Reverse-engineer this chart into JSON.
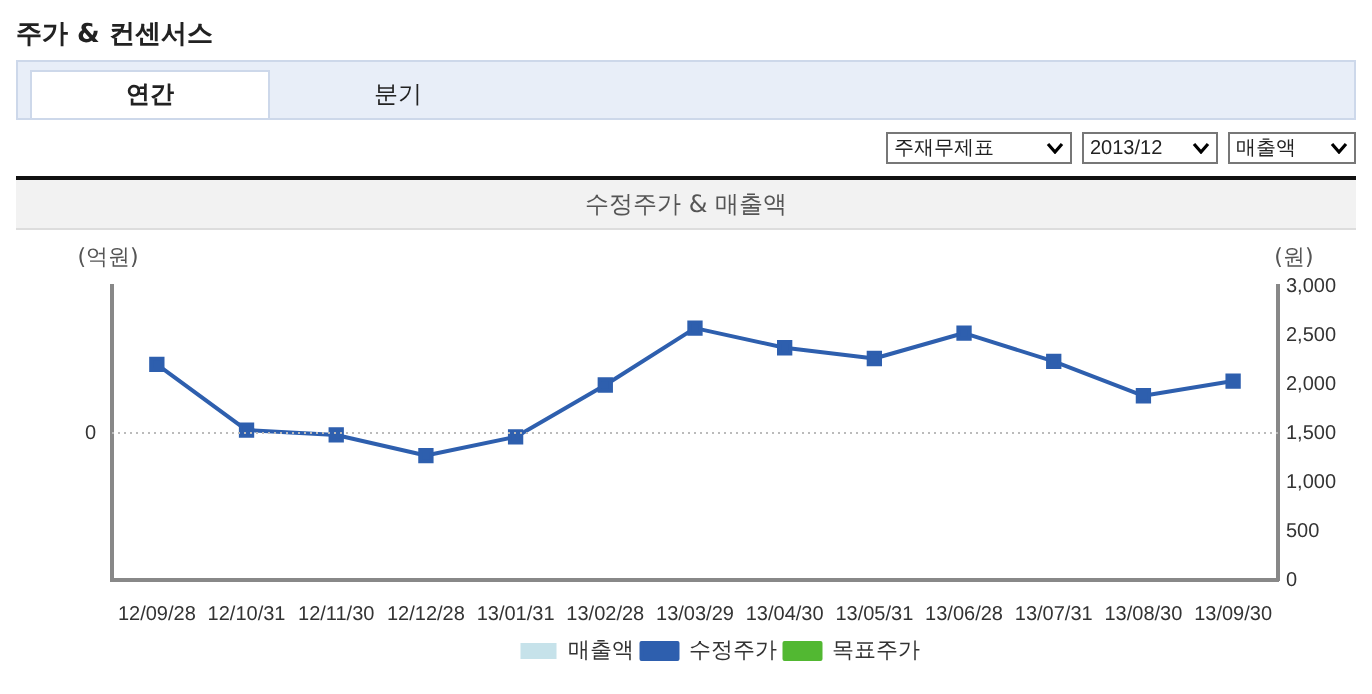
{
  "chart_data": {
    "type": "line",
    "title": "주가 & 컨센서스",
    "subtitle": "수정주가 & 매출액",
    "annotations": [
      "연간",
      "분기",
      "주재무제표",
      "2013/12",
      "매출액",
      "0"
    ],
    "ylabel": "(억원)",
    "y2label": "(원)",
    "categories": [
      "12/09/28",
      "12/10/31",
      "12/11/30",
      "12/12/28",
      "13/01/31",
      "13/02/28",
      "13/03/29",
      "13/04/30",
      "13/05/31",
      "13/06/28",
      "13/07/31",
      "13/08/30",
      "13/09/30"
    ],
    "series": [
      {
        "name": "매출액",
        "type": "bar",
        "color": "#c6e2ea",
        "values": [
          null,
          null,
          null,
          null,
          null,
          null,
          null,
          null,
          null,
          null,
          null,
          null,
          null
        ]
      },
      {
        "name": "수정주가",
        "axis": "y2",
        "color": "#2e5fae",
        "values": [
          2200,
          1530,
          1480,
          1270,
          1460,
          1990,
          2570,
          2370,
          2260,
          2520,
          2230,
          1880,
          2030
        ]
      },
      {
        "name": "목표주가",
        "axis": "y2",
        "color": "#52b832",
        "values": [
          null,
          null,
          null,
          null,
          null,
          null,
          null,
          null,
          null,
          null,
          null,
          null,
          null
        ]
      }
    ],
    "y2lim": [
      0,
      3000
    ],
    "y2ticks": [
      {
        "value": 0,
        "label": "0"
      },
      {
        "value": 500,
        "label": "500"
      },
      {
        "value": 1000,
        "label": "1,000"
      },
      {
        "value": 1500,
        "label": "1,500"
      },
      {
        "value": 2000,
        "label": "2,000"
      },
      {
        "value": 2500,
        "label": "2,500"
      },
      {
        "value": 3000,
        "label": "3,000"
      }
    ],
    "legend": "bottom",
    "marker": "square",
    "line_style": "solid"
  }
}
